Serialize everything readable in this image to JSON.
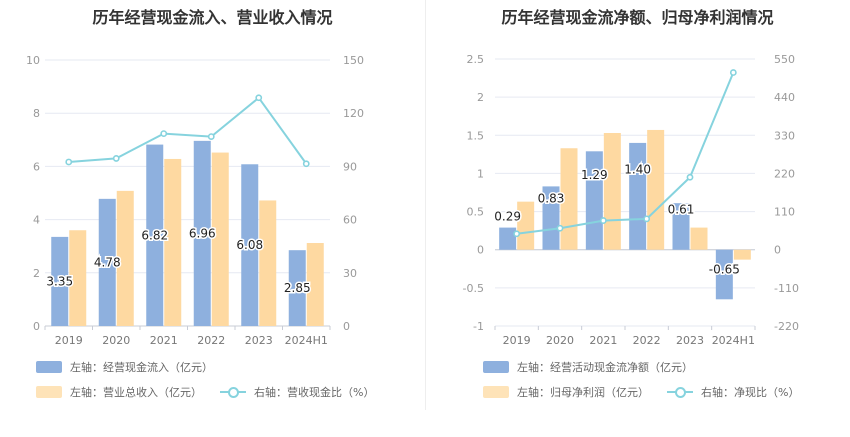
{
  "colors": {
    "bar1": "#8eb0de",
    "bar2": "#fed9a1",
    "line": "#86d3de",
    "grid": "#e6e9f2",
    "axis": "#999999",
    "text": "#333333"
  },
  "chart_data": [
    {
      "type": "bar",
      "title": "历年经营现金流入、营业收入情况",
      "categories": [
        "2019",
        "2020",
        "2021",
        "2022",
        "2023",
        "2024H1"
      ],
      "left_ticks": [
        "10",
        "8",
        "6",
        "4",
        "2",
        "0"
      ],
      "right_ticks": [
        "150",
        "120",
        "90",
        "60",
        "30",
        "0"
      ],
      "ylim_left": [
        0,
        10
      ],
      "ylim_right": [
        0,
        150
      ],
      "series": [
        {
          "name": "左轴：经营现金流入（亿元）",
          "axis": "left",
          "kind": "bar",
          "values": [
            3.35,
            4.78,
            6.82,
            6.96,
            6.08,
            2.85
          ],
          "labels": [
            "3.35",
            "4.78",
            "6.82",
            "6.96",
            "6.08",
            "2.85"
          ]
        },
        {
          "name": "左轴：营业总收入（亿元）",
          "axis": "left",
          "kind": "bar",
          "values": [
            3.6,
            5.08,
            6.28,
            6.52,
            4.72,
            3.12
          ]
        },
        {
          "name": "右轴：营收现金比（%）",
          "axis": "right",
          "kind": "line",
          "values": [
            92.5,
            94.5,
            108.5,
            106.8,
            128.7,
            91.5
          ]
        }
      ]
    },
    {
      "type": "bar",
      "title": "历年经营现金流净额、归母净利润情况",
      "categories": [
        "2019",
        "2020",
        "2021",
        "2022",
        "2023",
        "2024H1"
      ],
      "left_ticks": [
        "2.5",
        "2",
        "1.5",
        "1",
        "0.5",
        "0",
        "-0.5",
        "-1"
      ],
      "right_ticks": [
        "550",
        "440",
        "330",
        "220",
        "110",
        "0",
        "-110",
        "-220"
      ],
      "ylim_left": [
        -1,
        2.5
      ],
      "ylim_right": [
        -220,
        550
      ],
      "series": [
        {
          "name": "左轴：经营活动现金流净额（亿元）",
          "axis": "left",
          "kind": "bar",
          "values": [
            0.29,
            0.83,
            1.29,
            1.4,
            0.61,
            -0.65
          ],
          "labels": [
            "0.29",
            "0.83",
            "1.29",
            "1.40",
            "0.61",
            "-0.65"
          ]
        },
        {
          "name": "左轴：归母净利润（亿元）",
          "axis": "left",
          "kind": "bar",
          "values": [
            0.63,
            1.33,
            1.53,
            1.57,
            0.29,
            -0.13
          ]
        },
        {
          "name": "右轴：净现比（%）",
          "axis": "right",
          "kind": "line",
          "values": [
            46,
            62,
            84,
            89,
            209,
            511
          ]
        }
      ]
    }
  ]
}
